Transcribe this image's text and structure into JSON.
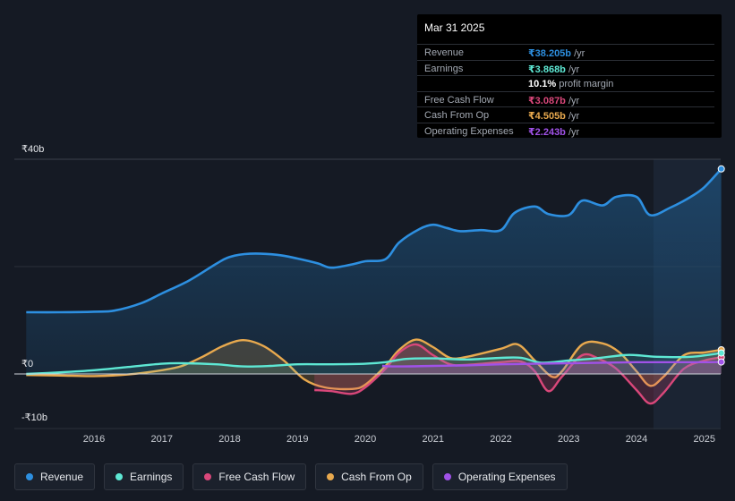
{
  "tooltip": {
    "date": "Mar 31 2025",
    "rows": [
      {
        "label": "Revenue",
        "value": "₹38.205b",
        "unit": " /yr",
        "color": "#2d8fe0"
      },
      {
        "label": "Earnings",
        "value": "₹3.868b",
        "unit": " /yr",
        "color": "#5ee8d4"
      },
      {
        "label": "",
        "value": "10.1%",
        "unit": " profit margin",
        "color": "#ffffff"
      },
      {
        "label": "Free Cash Flow",
        "value": "₹3.087b",
        "unit": " /yr",
        "color": "#d9477a"
      },
      {
        "label": "Cash From Op",
        "value": "₹4.505b",
        "unit": " /yr",
        "color": "#e8a94e"
      },
      {
        "label": "Operating Expenses",
        "value": "₹2.243b",
        "unit": " /yr",
        "color": "#a052e8"
      }
    ]
  },
  "legend": [
    {
      "label": "Revenue",
      "color": "#2d8fe0"
    },
    {
      "label": "Earnings",
      "color": "#5ee8d4"
    },
    {
      "label": "Free Cash Flow",
      "color": "#d9477a"
    },
    {
      "label": "Cash From Op",
      "color": "#e8a94e"
    },
    {
      "label": "Operating Expenses",
      "color": "#a052e8"
    }
  ],
  "chart_data": {
    "type": "area",
    "currency": "₹",
    "unit": "b",
    "ylim": [
      -10,
      40
    ],
    "y_tick_labels": [
      "₹40b",
      "₹0",
      "-₹10b"
    ],
    "x_tick_labels": [
      "2016",
      "2017",
      "2018",
      "2019",
      "2020",
      "2021",
      "2022",
      "2023",
      "2024",
      "2025"
    ],
    "highlight_from": 2024.25,
    "series": [
      {
        "name": "Revenue",
        "color": "#2d8fe0",
        "points": [
          [
            2015.0,
            11.5
          ],
          [
            2015.5,
            11.5
          ],
          [
            2016.0,
            11.6
          ],
          [
            2016.3,
            11.8
          ],
          [
            2016.7,
            13.2
          ],
          [
            2017.0,
            15.0
          ],
          [
            2017.4,
            17.4
          ],
          [
            2017.8,
            20.5
          ],
          [
            2018.0,
            21.8
          ],
          [
            2018.3,
            22.4
          ],
          [
            2018.7,
            22.2
          ],
          [
            2019.0,
            21.5
          ],
          [
            2019.3,
            20.6
          ],
          [
            2019.5,
            19.8
          ],
          [
            2019.8,
            20.4
          ],
          [
            2020.0,
            21.0
          ],
          [
            2020.3,
            21.4
          ],
          [
            2020.5,
            24.5
          ],
          [
            2020.8,
            27.0
          ],
          [
            2021.0,
            27.8
          ],
          [
            2021.2,
            27.2
          ],
          [
            2021.4,
            26.6
          ],
          [
            2021.7,
            26.8
          ],
          [
            2022.0,
            26.8
          ],
          [
            2022.2,
            30.0
          ],
          [
            2022.5,
            31.2
          ],
          [
            2022.7,
            29.8
          ],
          [
            2023.0,
            29.6
          ],
          [
            2023.2,
            32.3
          ],
          [
            2023.5,
            31.4
          ],
          [
            2023.7,
            33.0
          ],
          [
            2024.0,
            33.0
          ],
          [
            2024.2,
            29.6
          ],
          [
            2024.5,
            31.0
          ],
          [
            2024.8,
            33.0
          ],
          [
            2025.0,
            34.8
          ],
          [
            2025.25,
            38.2
          ]
        ]
      },
      {
        "name": "Earnings",
        "color": "#5ee8d4",
        "points": [
          [
            2015.0,
            0.0
          ],
          [
            2015.5,
            0.3
          ],
          [
            2016.0,
            0.7
          ],
          [
            2016.5,
            1.3
          ],
          [
            2017.0,
            1.9
          ],
          [
            2017.3,
            2.0
          ],
          [
            2017.8,
            1.8
          ],
          [
            2018.2,
            1.4
          ],
          [
            2018.6,
            1.5
          ],
          [
            2019.0,
            1.8
          ],
          [
            2019.5,
            1.8
          ],
          [
            2020.0,
            1.9
          ],
          [
            2020.3,
            2.2
          ],
          [
            2020.6,
            2.8
          ],
          [
            2021.0,
            2.9
          ],
          [
            2021.5,
            2.7
          ],
          [
            2022.0,
            3.0
          ],
          [
            2022.3,
            3.0
          ],
          [
            2022.6,
            2.1
          ],
          [
            2023.0,
            2.5
          ],
          [
            2023.4,
            2.9
          ],
          [
            2023.8,
            3.5
          ],
          [
            2024.0,
            3.5
          ],
          [
            2024.3,
            3.2
          ],
          [
            2024.8,
            3.2
          ],
          [
            2025.25,
            3.9
          ]
        ]
      },
      {
        "name": "Free Cash Flow",
        "color": "#d9477a",
        "points": [
          [
            2019.25,
            -3.0
          ],
          [
            2019.5,
            -3.2
          ],
          [
            2019.8,
            -3.7
          ],
          [
            2020.0,
            -2.5
          ],
          [
            2020.3,
            1.0
          ],
          [
            2020.5,
            4.0
          ],
          [
            2020.75,
            5.5
          ],
          [
            2021.0,
            3.5
          ],
          [
            2021.25,
            1.8
          ],
          [
            2021.5,
            1.7
          ],
          [
            2022.0,
            2.2
          ],
          [
            2022.3,
            2.3
          ],
          [
            2022.5,
            0.5
          ],
          [
            2022.7,
            -3.2
          ],
          [
            2022.9,
            -0.5
          ],
          [
            2023.2,
            3.5
          ],
          [
            2023.45,
            2.8
          ],
          [
            2023.7,
            1.0
          ],
          [
            2024.0,
            -3.0
          ],
          [
            2024.2,
            -5.5
          ],
          [
            2024.4,
            -3.5
          ],
          [
            2024.7,
            1.0
          ],
          [
            2025.0,
            2.5
          ],
          [
            2025.25,
            3.1
          ]
        ]
      },
      {
        "name": "Cash From Op",
        "color": "#e8a94e",
        "points": [
          [
            2015.0,
            -0.2
          ],
          [
            2015.5,
            -0.3
          ],
          [
            2016.0,
            -0.4
          ],
          [
            2016.5,
            -0.1
          ],
          [
            2017.0,
            0.7
          ],
          [
            2017.3,
            1.5
          ],
          [
            2017.6,
            3.2
          ],
          [
            2017.9,
            5.2
          ],
          [
            2018.2,
            6.3
          ],
          [
            2018.5,
            5.2
          ],
          [
            2018.8,
            2.5
          ],
          [
            2019.1,
            -1.0
          ],
          [
            2019.4,
            -2.5
          ],
          [
            2019.8,
            -2.8
          ],
          [
            2020.0,
            -2.0
          ],
          [
            2020.3,
            1.5
          ],
          [
            2020.5,
            4.5
          ],
          [
            2020.75,
            6.4
          ],
          [
            2021.0,
            5.0
          ],
          [
            2021.25,
            3.0
          ],
          [
            2021.5,
            3.2
          ],
          [
            2022.0,
            4.7
          ],
          [
            2022.25,
            5.5
          ],
          [
            2022.5,
            2.5
          ],
          [
            2022.75,
            -0.5
          ],
          [
            2022.9,
            0.5
          ],
          [
            2023.2,
            5.5
          ],
          [
            2023.5,
            5.7
          ],
          [
            2023.75,
            4.0
          ],
          [
            2024.0,
            0.5
          ],
          [
            2024.2,
            -2.2
          ],
          [
            2024.4,
            -0.5
          ],
          [
            2024.7,
            3.5
          ],
          [
            2025.0,
            4.0
          ],
          [
            2025.25,
            4.5
          ]
        ]
      },
      {
        "name": "Operating Expenses",
        "color": "#a052e8",
        "points": [
          [
            2020.25,
            1.5
          ],
          [
            2020.5,
            1.4
          ],
          [
            2021.0,
            1.5
          ],
          [
            2021.5,
            1.6
          ],
          [
            2022.0,
            1.8
          ],
          [
            2022.5,
            1.9
          ],
          [
            2023.0,
            2.0
          ],
          [
            2023.5,
            2.1
          ],
          [
            2024.0,
            2.2
          ],
          [
            2024.5,
            2.2
          ],
          [
            2025.0,
            2.2
          ],
          [
            2025.25,
            2.24
          ]
        ]
      }
    ]
  }
}
